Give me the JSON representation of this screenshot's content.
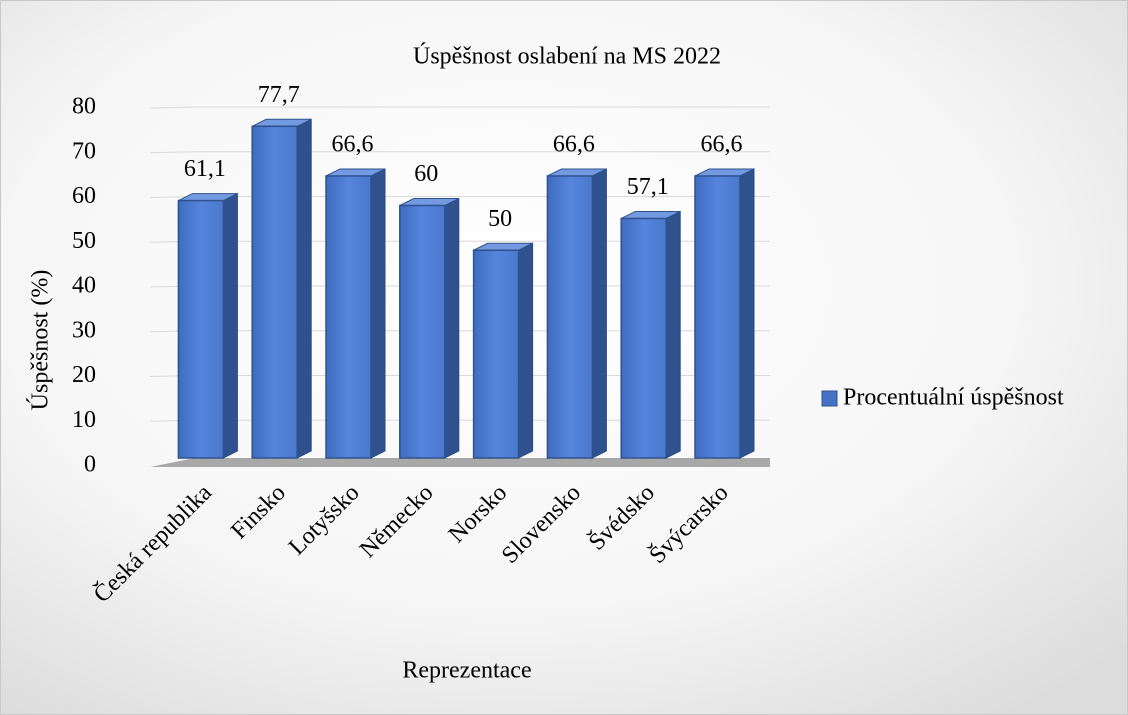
{
  "chart_data": {
    "type": "bar3d",
    "title": "Úspěšnost oslabení na MS 2022",
    "x_label": "Reprezentace",
    "y_label": "Úspěšnost (%)",
    "categories": [
      "Česká republika",
      "Finsko",
      "Lotyšsko",
      "Německo",
      "Norsko",
      "Slovensko",
      "Švédsko",
      "Švýcarsko"
    ],
    "series": [
      {
        "name": "Procentuální úspěšnost",
        "color": "#4472c4",
        "values": [
          61.1,
          77.7,
          66.6,
          60,
          50,
          66.6,
          57.1,
          66.6
        ],
        "value_labels": [
          "61,1",
          "77,7",
          "66,6",
          "60",
          "50",
          "66,6",
          "57,1",
          "66,6"
        ]
      }
    ],
    "ylim": [
      0,
      80
    ],
    "yticks": [
      0,
      10,
      20,
      30,
      40,
      50,
      60,
      70,
      80
    ],
    "grid": true,
    "legend": "right"
  }
}
